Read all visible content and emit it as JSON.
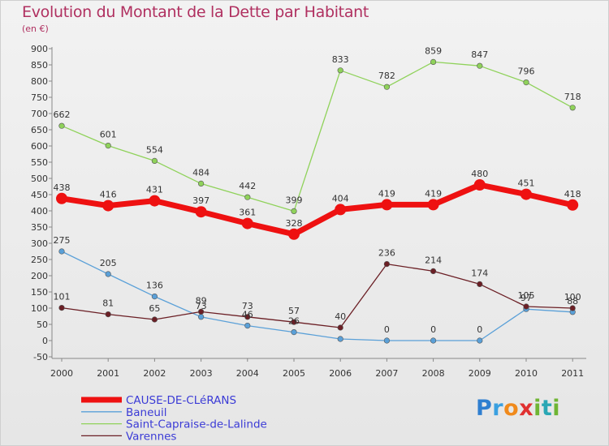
{
  "title": "Evolution du Montant de la Dette par Habitant",
  "subtitle": "(en €)",
  "logo": {
    "p": "P",
    "r": "r",
    "o": "o",
    "x": "x",
    "i": "i",
    "t": "t",
    "i2": "i"
  },
  "colors": {
    "title": "#b03060",
    "axis": "#888888",
    "label": "#333333",
    "legend_text": "#3b3bd6"
  },
  "chart_data": {
    "type": "line",
    "title": "Evolution du Montant de la Dette par Habitant",
    "ylabel": "(en €)",
    "categories": [
      "2000",
      "2001",
      "2002",
      "2003",
      "2004",
      "2005",
      "2006",
      "2007",
      "2008",
      "2009",
      "2010",
      "2011"
    ],
    "ylim": [
      -50,
      900
    ],
    "yticks": [
      -50,
      0,
      50,
      100,
      150,
      200,
      250,
      300,
      350,
      400,
      450,
      500,
      550,
      600,
      650,
      700,
      750,
      800,
      850,
      900
    ],
    "grid": false,
    "legend": "bottom-left",
    "series": [
      {
        "name": "CAUSE-DE-CLéRANS",
        "color": "#ee1111",
        "values": [
          438,
          416,
          431,
          397,
          361,
          328,
          404,
          419,
          419,
          480,
          451,
          418
        ]
      },
      {
        "name": "Baneuil",
        "color": "#5aa0d8",
        "values": [
          275,
          205,
          136,
          73,
          46,
          26,
          5,
          0,
          0,
          0,
          97,
          88
        ]
      },
      {
        "name": "Saint-Capraise-de-Lalinde",
        "color": "#8fd25a",
        "values": [
          662,
          601,
          554,
          484,
          442,
          399,
          833,
          782,
          859,
          847,
          796,
          718
        ]
      },
      {
        "name": "Varennes",
        "color": "#6b1f25",
        "values": [
          101,
          81,
          65,
          89,
          73,
          57,
          40,
          236,
          214,
          174,
          105,
          100
        ]
      }
    ],
    "data_labels": [
      {
        "series": 0,
        "index": 0,
        "text": "438"
      },
      {
        "series": 0,
        "index": 1,
        "text": "416"
      },
      {
        "series": 0,
        "index": 2,
        "text": "431"
      },
      {
        "series": 0,
        "index": 3,
        "text": "397"
      },
      {
        "series": 0,
        "index": 4,
        "text": "361"
      },
      {
        "series": 0,
        "index": 5,
        "text": "328"
      },
      {
        "series": 0,
        "index": 6,
        "text": "404"
      },
      {
        "series": 0,
        "index": 7,
        "text": "419"
      },
      {
        "series": 0,
        "index": 8,
        "text": "419"
      },
      {
        "series": 0,
        "index": 9,
        "text": "480"
      },
      {
        "series": 0,
        "index": 10,
        "text": "451"
      },
      {
        "series": 0,
        "index": 11,
        "text": "418"
      },
      {
        "series": 1,
        "index": 0,
        "text": "275"
      },
      {
        "series": 1,
        "index": 1,
        "text": "205"
      },
      {
        "series": 1,
        "index": 2,
        "text": "136"
      },
      {
        "series": 1,
        "index": 3,
        "text": "73"
      },
      {
        "series": 1,
        "index": 4,
        "text": "46"
      },
      {
        "series": 1,
        "index": 5,
        "text": "26"
      },
      {
        "series": 1,
        "index": 7,
        "text": "0"
      },
      {
        "series": 1,
        "index": 8,
        "text": "0"
      },
      {
        "series": 1,
        "index": 9,
        "text": "0"
      },
      {
        "series": 1,
        "index": 10,
        "text": "97"
      },
      {
        "series": 1,
        "index": 11,
        "text": "88"
      },
      {
        "series": 2,
        "index": 0,
        "text": "662"
      },
      {
        "series": 2,
        "index": 1,
        "text": "601"
      },
      {
        "series": 2,
        "index": 2,
        "text": "554"
      },
      {
        "series": 2,
        "index": 3,
        "text": "484"
      },
      {
        "series": 2,
        "index": 4,
        "text": "442"
      },
      {
        "series": 2,
        "index": 5,
        "text": "399"
      },
      {
        "series": 2,
        "index": 6,
        "text": "833"
      },
      {
        "series": 2,
        "index": 7,
        "text": "782"
      },
      {
        "series": 2,
        "index": 8,
        "text": "859"
      },
      {
        "series": 2,
        "index": 9,
        "text": "847"
      },
      {
        "series": 2,
        "index": 10,
        "text": "796"
      },
      {
        "series": 2,
        "index": 11,
        "text": "718"
      },
      {
        "series": 3,
        "index": 0,
        "text": "101"
      },
      {
        "series": 3,
        "index": 1,
        "text": "81"
      },
      {
        "series": 3,
        "index": 2,
        "text": "65"
      },
      {
        "series": 3,
        "index": 3,
        "text": "89"
      },
      {
        "series": 3,
        "index": 4,
        "text": "73"
      },
      {
        "series": 3,
        "index": 5,
        "text": "57"
      },
      {
        "series": 3,
        "index": 6,
        "text": "40"
      },
      {
        "series": 3,
        "index": 7,
        "text": "236"
      },
      {
        "series": 3,
        "index": 8,
        "text": "214"
      },
      {
        "series": 3,
        "index": 9,
        "text": "174"
      },
      {
        "series": 3,
        "index": 10,
        "text": "105"
      },
      {
        "series": 3,
        "index": 11,
        "text": "100"
      }
    ]
  }
}
